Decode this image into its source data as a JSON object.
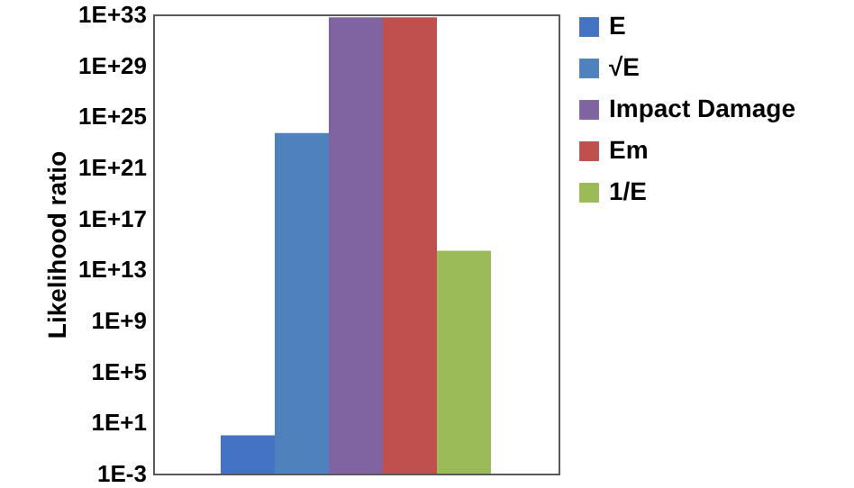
{
  "chart_data": {
    "type": "bar",
    "ylabel": "Likelihood ratio",
    "categories": [
      null
    ],
    "series": [
      {
        "name": "E",
        "color": "#4472c4",
        "values": [
          1
        ]
      },
      {
        "name": "√E",
        "color": "#4f81bd",
        "values": [
          5e+23
        ]
      },
      {
        "name": "Impact Damage",
        "color": "#8064a2",
        "values": [
          6e+32
        ]
      },
      {
        "name": "Em",
        "color": "#c0504d",
        "values": [
          6e+32
        ]
      },
      {
        "name": "1/E",
        "color": "#9bbb59",
        "values": [
          300000000000000.0
        ]
      }
    ],
    "log": true,
    "ylim": [
      0.001,
      1e+33
    ],
    "yticks": [
      {
        "value": 0.001,
        "label": "1E-3"
      },
      {
        "value": 10,
        "label": "1E+1"
      },
      {
        "value": 100000.0,
        "label": "1E+5"
      },
      {
        "value": 1000000000.0,
        "label": "1E+9"
      },
      {
        "value": 10000000000000.0,
        "label": "1E+13"
      },
      {
        "value": 1e+17,
        "label": "1E+17"
      },
      {
        "value": 1e+21,
        "label": "1E+21"
      },
      {
        "value": 1e+25,
        "label": "1E+25"
      },
      {
        "value": 1e+29,
        "label": "1E+29"
      },
      {
        "value": 1e+33,
        "label": "1E+33"
      }
    ],
    "grid": false,
    "legend": "right",
    "tick_labels": "y"
  }
}
